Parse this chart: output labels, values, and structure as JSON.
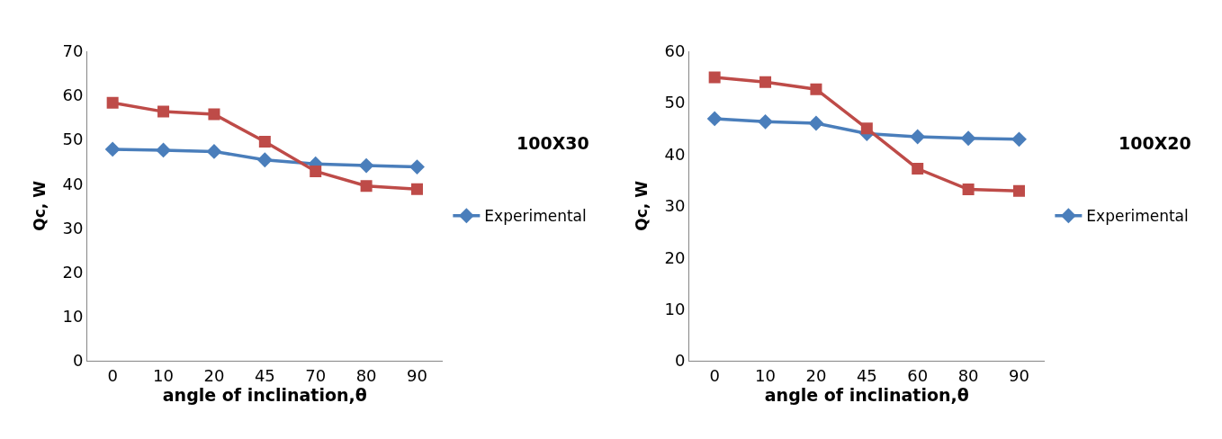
{
  "chart_data": [
    {
      "type": "line",
      "xlabel": "angle of inclination,θ",
      "ylabel": "Qc, W",
      "categories": [
        "0",
        "10",
        "20",
        "45",
        "70",
        "80",
        "90"
      ],
      "ylim": [
        0,
        70
      ],
      "yticks": [
        0,
        10,
        20,
        30,
        40,
        50,
        60,
        70
      ],
      "legend": "right",
      "annotations": [
        "100X30"
      ],
      "series": [
        {
          "name": "Experimental",
          "color": "#4a7ebb",
          "marker": "diamond",
          "values": [
            47.8,
            47.6,
            47.3,
            45.4,
            44.5,
            44.1,
            43.8
          ]
        },
        {
          "color": "#be4b48",
          "marker": "square",
          "values": [
            58.3,
            56.3,
            55.7,
            49.5,
            42.8,
            39.5,
            38.8
          ]
        }
      ]
    },
    {
      "type": "line",
      "xlabel": "angle of inclination,θ",
      "ylabel": "Qc, W",
      "categories": [
        "0",
        "10",
        "20",
        "45",
        "60",
        "80",
        "90"
      ],
      "ylim": [
        0,
        60
      ],
      "yticks": [
        0,
        10,
        20,
        30,
        40,
        50,
        60
      ],
      "legend": "right",
      "annotations": [
        "100X20"
      ],
      "series": [
        {
          "name": "Experimental",
          "color": "#4a7ebb",
          "marker": "diamond",
          "values": [
            46.9,
            46.3,
            46.0,
            44.0,
            43.4,
            43.1,
            42.9
          ]
        },
        {
          "color": "#be4b48",
          "marker": "square",
          "values": [
            54.9,
            54.0,
            52.6,
            45.0,
            37.2,
            33.2,
            32.9
          ]
        }
      ]
    }
  ]
}
